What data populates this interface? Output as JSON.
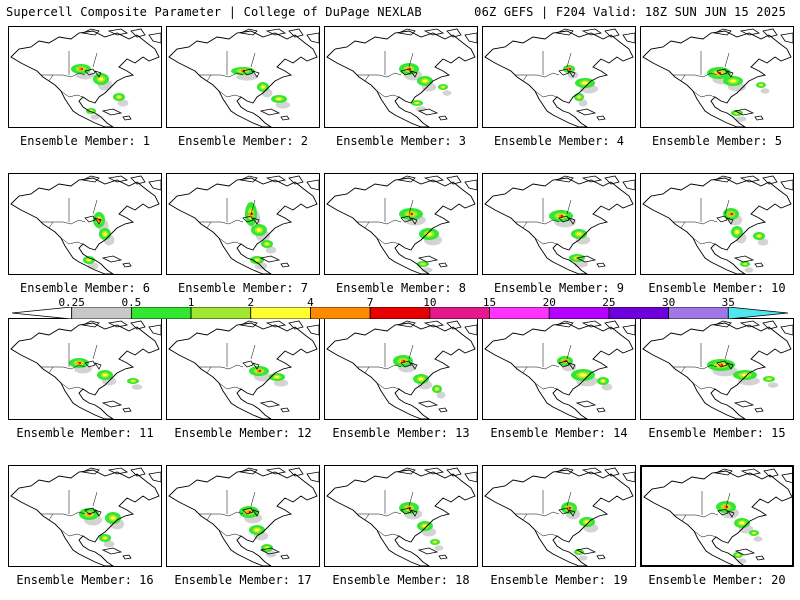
{
  "header": {
    "left_title": "Supercell Composite Parameter | College of DuPage NEXLAB",
    "right_title": "06Z GEFS | F204 Valid: 18Z SUN JUN 15 2025"
  },
  "members": [
    {
      "label": "Ensemble Member: 1"
    },
    {
      "label": "Ensemble Member: 2"
    },
    {
      "label": "Ensemble Member: 3"
    },
    {
      "label": "Ensemble Member: 4"
    },
    {
      "label": "Ensemble Member: 5"
    },
    {
      "label": "Ensemble Member: 6"
    },
    {
      "label": "Ensemble Member: 7"
    },
    {
      "label": "Ensemble Member: 8"
    },
    {
      "label": "Ensemble Member: 9"
    },
    {
      "label": "Ensemble Member: 10"
    },
    {
      "label": "Ensemble Member: 11"
    },
    {
      "label": "Ensemble Member: 12"
    },
    {
      "label": "Ensemble Member: 13"
    },
    {
      "label": "Ensemble Member: 14"
    },
    {
      "label": "Ensemble Member: 15"
    },
    {
      "label": "Ensemble Member: 16"
    },
    {
      "label": "Ensemble Member: 17"
    },
    {
      "label": "Ensemble Member: 18"
    },
    {
      "label": "Ensemble Member: 19"
    },
    {
      "label": "Ensemble Member: 20"
    }
  ],
  "colorbar": {
    "ticks": [
      "0.25",
      "0.5",
      "1",
      "2",
      "4",
      "7",
      "10",
      "15",
      "20",
      "25",
      "30",
      "35"
    ],
    "colors": [
      "#ffffff",
      "#c8c8c8",
      "#32e632",
      "#a0e632",
      "#ffff32",
      "#ff8c00",
      "#e60000",
      "#e6198c",
      "#ff32ff",
      "#b400ff",
      "#6e00dc",
      "#a078e6",
      "#50e6f0"
    ]
  }
}
